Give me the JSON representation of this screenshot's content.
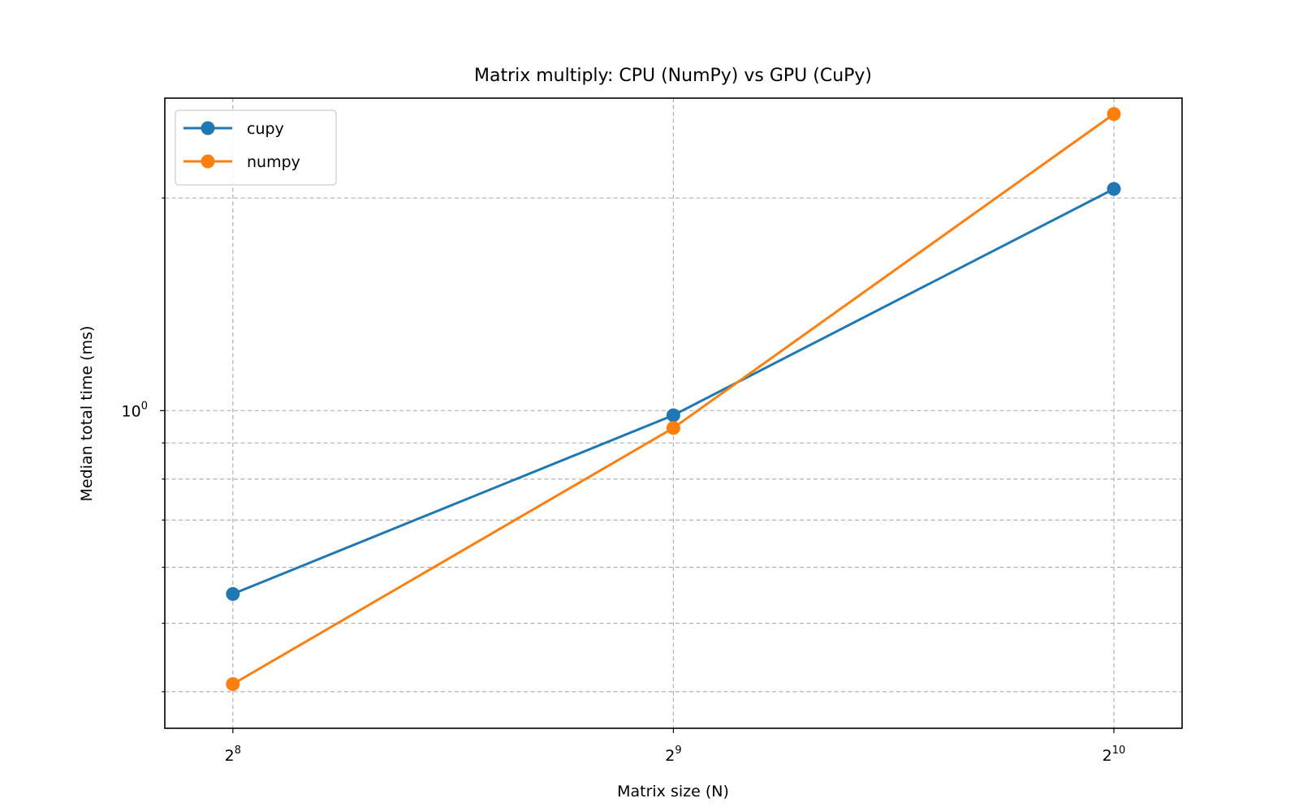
{
  "chart_data": {
    "type": "line",
    "title": "Matrix multiply: CPU (NumPy) vs GPU (CuPy)",
    "xlabel": "Matrix size (N)",
    "ylabel": "Median total time (ms)",
    "xscale": "log2",
    "yscale": "log10",
    "x": [
      256,
      512,
      1024
    ],
    "x_ticks": [
      {
        "base": "2",
        "exp": "8",
        "value": 256
      },
      {
        "base": "2",
        "exp": "9",
        "value": 512
      },
      {
        "base": "2",
        "exp": "10",
        "value": 1024
      }
    ],
    "y_ticks": [
      {
        "base": "10",
        "exp": "0",
        "value": 1
      }
    ],
    "ylim": [
      0.355,
      2.77
    ],
    "xlim": [
      230,
      1140
    ],
    "grid": true,
    "legend_position": "upper-left",
    "series": [
      {
        "name": "cupy",
        "color": "#1f77b4",
        "values": [
          0.55,
          0.985,
          2.06
        ]
      },
      {
        "name": "numpy",
        "color": "#ff7f0e",
        "values": [
          0.41,
          0.945,
          2.63
        ]
      }
    ]
  }
}
